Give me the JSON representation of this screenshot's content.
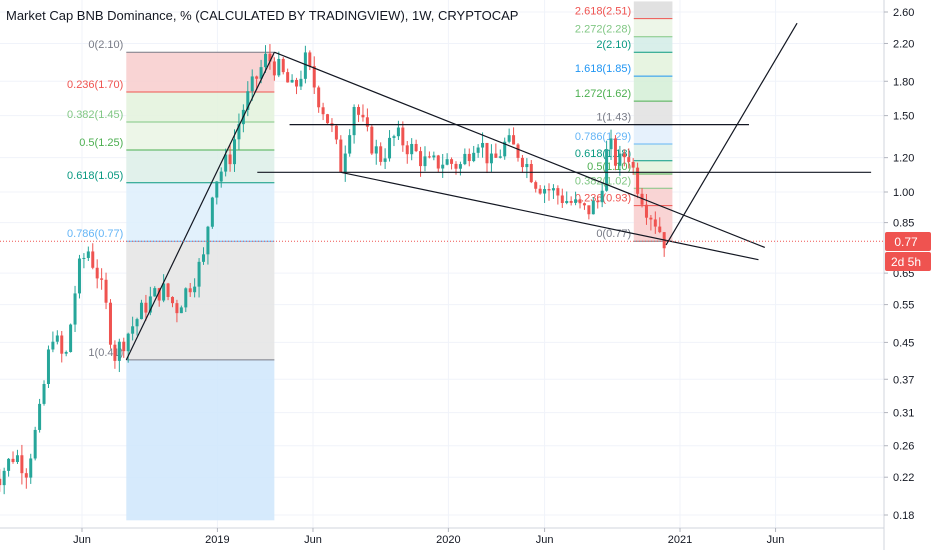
{
  "header": {
    "title": "Market Cap BNB Dominance, % (CALCULATED BY TRADINGVIEW), 1W, CRYPTOCAP"
  },
  "price_badges": {
    "last_price": "0.77",
    "countdown": "2d 5h"
  },
  "colors": {
    "up": "#26a69a",
    "down": "#ef5350",
    "line": "#131722",
    "badge": "#ef5350",
    "grid": "#f0f3fa"
  },
  "chart_data": {
    "type": "candlestick",
    "title": "Market Cap BNB Dominance, % (CALCULATED BY TRADINGVIEW), 1W, CRYPTOCAP",
    "y_scale": "log",
    "y_ticks": [
      2.6,
      2.2,
      1.8,
      1.5,
      1.2,
      1.0,
      0.85,
      0.65,
      0.55,
      0.45,
      0.37,
      0.31,
      0.26,
      0.22,
      0.18
    ],
    "y_tick_labels": [
      "2.60",
      "2.20",
      "1.80",
      "1.50",
      "1.20",
      "1.00",
      "0.85",
      "0.65",
      "0.55",
      "0.45",
      "0.37",
      "0.31",
      "0.26",
      "0.22",
      "0.18"
    ],
    "x_ticks": [
      {
        "label": "Jun",
        "date": "2018-06-01"
      },
      {
        "label": "2019",
        "date": "2019-01-01"
      },
      {
        "label": "Jun",
        "date": "2019-06-01"
      },
      {
        "label": "2020",
        "date": "2020-01-01"
      },
      {
        "label": "Jun",
        "date": "2020-06-01"
      },
      {
        "label": "2021",
        "date": "2021-01-01"
      },
      {
        "label": "Jun",
        "date": "2021-06-01"
      }
    ],
    "x_range": [
      "2018-01-01",
      "2021-12-10"
    ],
    "y_range": [
      0.175,
      2.75
    ],
    "last_value": 0.77,
    "price_path": [
      {
        "date": "2018-01-01",
        "value": 0.24
      },
      {
        "date": "2018-01-20",
        "value": 0.22
      },
      {
        "date": "2018-02-15",
        "value": 0.25
      },
      {
        "date": "2018-03-05",
        "value": 0.23
      },
      {
        "date": "2018-03-25",
        "value": 0.3
      },
      {
        "date": "2018-04-15",
        "value": 0.48
      },
      {
        "date": "2018-05-05",
        "value": 0.4
      },
      {
        "date": "2018-05-25",
        "value": 0.65
      },
      {
        "date": "2018-06-10",
        "value": 0.74
      },
      {
        "date": "2018-06-25",
        "value": 0.65
      },
      {
        "date": "2018-07-08",
        "value": 0.55
      },
      {
        "date": "2018-07-22",
        "value": 0.42
      },
      {
        "date": "2018-08-15",
        "value": 0.48
      },
      {
        "date": "2018-09-10",
        "value": 0.55
      },
      {
        "date": "2018-10-05",
        "value": 0.6
      },
      {
        "date": "2018-10-28",
        "value": 0.54
      },
      {
        "date": "2018-11-20",
        "value": 0.62
      },
      {
        "date": "2018-12-10",
        "value": 0.7
      },
      {
        "date": "2018-12-25",
        "value": 1.05
      },
      {
        "date": "2019-01-20",
        "value": 1.2
      },
      {
        "date": "2019-02-10",
        "value": 1.55
      },
      {
        "date": "2019-03-01",
        "value": 1.8
      },
      {
        "date": "2019-03-20",
        "value": 2.05
      },
      {
        "date": "2019-04-10",
        "value": 1.9
      },
      {
        "date": "2019-05-01",
        "value": 1.7
      },
      {
        "date": "2019-05-20",
        "value": 2.0
      },
      {
        "date": "2019-06-10",
        "value": 1.65
      },
      {
        "date": "2019-06-30",
        "value": 1.4
      },
      {
        "date": "2019-07-15",
        "value": 1.15
      },
      {
        "date": "2019-08-05",
        "value": 1.6
      },
      {
        "date": "2019-08-25",
        "value": 1.35
      },
      {
        "date": "2019-09-15",
        "value": 1.2
      },
      {
        "date": "2019-10-10",
        "value": 1.35
      },
      {
        "date": "2019-11-05",
        "value": 1.25
      },
      {
        "date": "2019-12-01",
        "value": 1.15
      },
      {
        "date": "2019-12-25",
        "value": 1.18
      },
      {
        "date": "2020-01-20",
        "value": 1.15
      },
      {
        "date": "2020-02-15",
        "value": 1.35
      },
      {
        "date": "2020-03-10",
        "value": 1.15
      },
      {
        "date": "2020-04-01",
        "value": 1.3
      },
      {
        "date": "2020-04-25",
        "value": 1.22
      },
      {
        "date": "2020-05-20",
        "value": 1.05
      },
      {
        "date": "2020-06-15",
        "value": 1.0
      },
      {
        "date": "2020-07-10",
        "value": 0.95
      },
      {
        "date": "2020-08-05",
        "value": 0.9
      },
      {
        "date": "2020-08-25",
        "value": 0.95
      },
      {
        "date": "2020-09-10",
        "value": 1.3
      },
      {
        "date": "2020-09-25",
        "value": 1.15
      },
      {
        "date": "2020-10-10",
        "value": 1.25
      },
      {
        "date": "2020-10-25",
        "value": 1.05
      },
      {
        "date": "2020-11-10",
        "value": 0.92
      },
      {
        "date": "2020-11-25",
        "value": 0.85
      },
      {
        "date": "2020-12-08",
        "value": 0.77
      }
    ],
    "fib_left": {
      "levels": [
        {
          "label": "0(2.10)",
          "value": 2.1,
          "color": "#787b86",
          "fill": "#f8cdcd"
        },
        {
          "label": "0.236(1.70)",
          "value": 1.7,
          "color": "#ef5350",
          "fill": "#e3f2dc"
        },
        {
          "label": "0.382(1.45)",
          "value": 1.45,
          "color": "#81c784",
          "fill": "#eaf5e4"
        },
        {
          "label": "0.5(1.25)",
          "value": 1.25,
          "color": "#4caf50",
          "fill": "#dcefe7"
        },
        {
          "label": "0.618(1.05)",
          "value": 1.05,
          "color": "#089981",
          "fill": "#ddeefc"
        },
        {
          "label": "0.786(0.77)",
          "value": 0.77,
          "color": "#64b5f6",
          "fill": "#e4e4e4"
        },
        {
          "label": "1(0.41)",
          "value": 0.41,
          "color": "#787b86",
          "fill": "#cfe6fb"
        }
      ],
      "x_start": "2018-08-10",
      "x_end": "2019-04-01",
      "x_text": "2018-08-10",
      "y_bottom": 0.175
    },
    "fib_right": {
      "levels": [
        {
          "label": "2.618(2.51)",
          "value": 2.51,
          "color": "#ef5350",
          "fill": "#dcdcdc"
        },
        {
          "label": "2.272(2.28)",
          "value": 2.28,
          "color": "#81c784",
          "fill": "#eaf5e4"
        },
        {
          "label": "2(2.10)",
          "value": 2.1,
          "color": "#089981",
          "fill": "#d2ece6"
        },
        {
          "label": "1.618(1.85)",
          "value": 1.85,
          "color": "#2196f3",
          "fill": "#e3f2dc"
        },
        {
          "label": "1.272(1.62)",
          "value": 1.62,
          "color": "#4caf50",
          "fill": "#d4eed6"
        },
        {
          "label": "1(1.43)",
          "value": 1.43,
          "color": "#787b86",
          "fill": "#e0e0e0"
        },
        {
          "label": "0.786(1.29)",
          "value": 1.29,
          "color": "#64b5f6",
          "fill": "#e2eefb"
        },
        {
          "label": "0.618(1.18)",
          "value": 1.18,
          "color": "#089981",
          "fill": "#dcefe7"
        },
        {
          "label": "0.5(1.10)",
          "value": 1.1,
          "color": "#4caf50",
          "fill": "#e3f2dc"
        },
        {
          "label": "0.382(1.02)",
          "value": 1.02,
          "color": "#81c784",
          "fill": "#fbe2e2"
        },
        {
          "label": "0.236(0.93)",
          "value": 0.93,
          "color": "#ef5350",
          "fill": "#f8cdcd"
        },
        {
          "label": "0(0.77)",
          "value": 0.77,
          "color": "#787b86",
          "fill": "#f8cdcd"
        }
      ],
      "x_start": "2020-10-20",
      "x_end": "2020-12-20",
      "x_text_right": "2020-10-19",
      "top_band": 2.75
    },
    "trend_lines": [
      {
        "from": {
          "date": "2018-08-10",
          "value": 0.41
        },
        "to": {
          "date": "2019-04-01",
          "value": 2.1
        }
      },
      {
        "from": {
          "date": "2019-04-01",
          "value": 2.1
        },
        "to": {
          "date": "2021-05-15",
          "value": 0.745
        }
      },
      {
        "from": {
          "date": "2019-07-15",
          "value": 1.11
        },
        "to": {
          "date": "2021-05-05",
          "value": 0.698
        }
      },
      {
        "from": {
          "date": "2019-04-25",
          "value": 1.43
        },
        "to": {
          "date": "2021-04-20",
          "value": 1.43
        }
      },
      {
        "from": {
          "date": "2019-03-05",
          "value": 1.11
        },
        "to": {
          "date": "2021-10-30",
          "value": 1.11
        }
      },
      {
        "from": {
          "date": "2020-12-10",
          "value": 0.755
        },
        "to": {
          "date": "2021-07-05",
          "value": 2.45
        }
      }
    ]
  }
}
